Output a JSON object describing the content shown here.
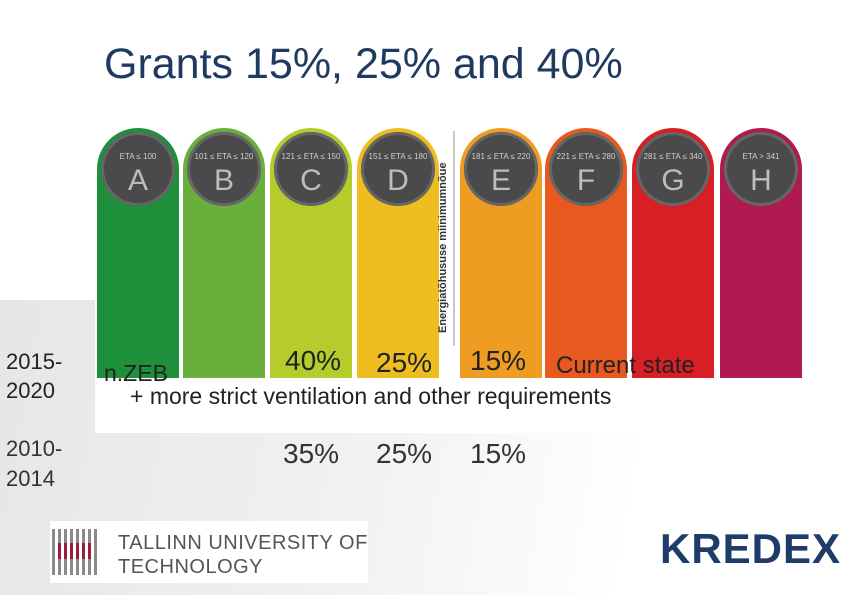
{
  "title": "Grants 15%, 25% and 40%",
  "scale": {
    "vertical_label": "Energiatõhususe miinimumnõue",
    "classes": [
      {
        "letter": "A",
        "range": "ETA ≤ 100",
        "color": "#1e8f3a"
      },
      {
        "letter": "B",
        "range": "101 ≤ ETA ≤ 120",
        "color": "#6aae3c"
      },
      {
        "letter": "C",
        "range": "121 ≤ ETA ≤ 150",
        "color": "#b5cc2c"
      },
      {
        "letter": "D",
        "range": "151 ≤ ETA ≤ 180",
        "color": "#eebd1f"
      },
      {
        "letter": "E",
        "range": "181 ≤ ETA ≤ 220",
        "color": "#ef9d22"
      },
      {
        "letter": "F",
        "range": "221 ≤ ETA ≤ 280",
        "color": "#e8591f"
      },
      {
        "letter": "G",
        "range": "281 ≤ ETA ≤ 340",
        "color": "#d91f26"
      },
      {
        "letter": "H",
        "range": "ETA > 341",
        "color": "#b01a52"
      }
    ]
  },
  "periods": {
    "p1_label": "2015-\n2020",
    "p1_nzeb": "n.ZEB",
    "p1_requirements": "+ more strict ventilation and other requirements",
    "p1_pct_1": "40%",
    "p1_pct_2": "25%",
    "p1_pct_3": "15%",
    "p1_current": "Current state",
    "p2_label": "2010-\n2014",
    "p2_pct_1": "35%",
    "p2_pct_2": "25%",
    "p2_pct_3": "15%"
  },
  "logos": {
    "tu_line1": "TALLINN UNIVERSITY OF",
    "tu_line2": "TECHNOLOGY",
    "kredex": "KREDEX"
  }
}
